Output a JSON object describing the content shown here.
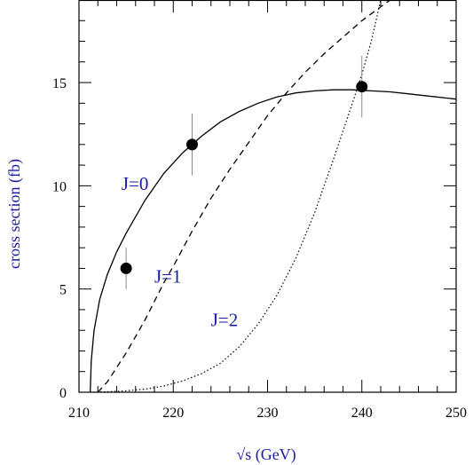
{
  "chart_data": {
    "type": "line",
    "title": "",
    "xlabel": "√s (GeV)",
    "ylabel": "cross section (fb)",
    "xlim": [
      210,
      250
    ],
    "ylim": [
      0,
      19
    ],
    "x_ticks": [
      210,
      220,
      230,
      240,
      250
    ],
    "y_ticks": [
      0,
      5,
      10,
      15
    ],
    "grid": false,
    "series": [
      {
        "name": "J=0",
        "style": "solid",
        "points": [
          [
            211.2,
            0
          ],
          [
            211.3,
            1.5
          ],
          [
            211.6,
            3.0
          ],
          [
            212.2,
            4.5
          ],
          [
            213.0,
            5.7
          ],
          [
            214.0,
            6.8
          ],
          [
            215.0,
            7.7
          ],
          [
            217.0,
            9.3
          ],
          [
            219.0,
            10.6
          ],
          [
            221.0,
            11.6
          ],
          [
            223.0,
            12.4
          ],
          [
            225.0,
            13.1
          ],
          [
            227.0,
            13.6
          ],
          [
            229.0,
            14.0
          ],
          [
            231.0,
            14.3
          ],
          [
            233.0,
            14.5
          ],
          [
            235.0,
            14.6
          ],
          [
            237.0,
            14.65
          ],
          [
            239.0,
            14.65
          ],
          [
            241.0,
            14.6
          ],
          [
            243.0,
            14.55
          ],
          [
            245.0,
            14.45
          ],
          [
            247.0,
            14.35
          ],
          [
            250.0,
            14.2
          ]
        ]
      },
      {
        "name": "J=1",
        "style": "dashed",
        "points": [
          [
            212.0,
            0
          ],
          [
            213.0,
            0.5
          ],
          [
            214.0,
            1.2
          ],
          [
            215.0,
            1.9
          ],
          [
            216.0,
            2.7
          ],
          [
            217.0,
            3.5
          ],
          [
            218.0,
            4.4
          ],
          [
            219.0,
            5.3
          ],
          [
            220.0,
            6.1
          ],
          [
            222.0,
            7.8
          ],
          [
            224.0,
            9.4
          ],
          [
            226.0,
            10.8
          ],
          [
            228.0,
            12.1
          ],
          [
            230.0,
            13.4
          ],
          [
            232.0,
            14.5
          ],
          [
            234.0,
            15.5
          ],
          [
            236.0,
            16.4
          ],
          [
            238.0,
            17.2
          ],
          [
            240.0,
            18.0
          ],
          [
            241.5,
            18.5
          ],
          [
            243.0,
            19.0
          ]
        ]
      },
      {
        "name": "J=2",
        "style": "dotted",
        "points": [
          [
            211.5,
            0
          ],
          [
            213.0,
            0.02
          ],
          [
            215.0,
            0.07
          ],
          [
            217.0,
            0.15
          ],
          [
            219.0,
            0.3
          ],
          [
            221.0,
            0.55
          ],
          [
            223.0,
            0.9
          ],
          [
            225.0,
            1.4
          ],
          [
            227.0,
            2.2
          ],
          [
            229.0,
            3.3
          ],
          [
            231.0,
            4.7
          ],
          [
            233.0,
            6.5
          ],
          [
            235.0,
            8.7
          ],
          [
            237.0,
            11.3
          ],
          [
            239.0,
            14.0
          ],
          [
            240.0,
            15.4
          ],
          [
            241.0,
            17.0
          ],
          [
            242.0,
            19.0
          ]
        ]
      }
    ],
    "data_points": [
      {
        "x": 215,
        "y": 6.0,
        "yerr": 1.0
      },
      {
        "x": 222,
        "y": 12.0,
        "yerr": 1.5
      },
      {
        "x": 240,
        "y": 14.8,
        "yerr": 1.5
      }
    ],
    "annotations": [
      {
        "text": "J=0",
        "x": 214.5,
        "y": 9.8
      },
      {
        "text": "J=1",
        "x": 218.0,
        "y": 5.3
      },
      {
        "text": "J=2",
        "x": 224.0,
        "y": 3.2
      }
    ],
    "colors": {
      "axis_title": "#1a1aa0",
      "annotation": "#1a1aa0",
      "curve": "#000000",
      "error_bar": "#8a8a8a",
      "marker": "#000000"
    }
  }
}
